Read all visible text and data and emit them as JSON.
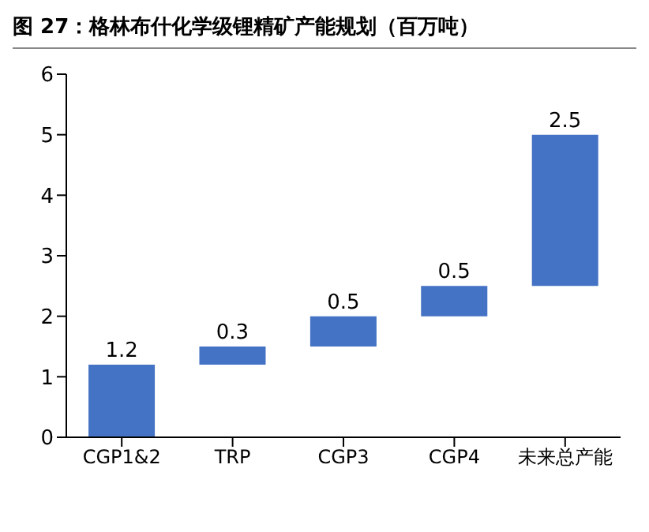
{
  "chart_data": {
    "type": "bar",
    "title": "图 27：格林布什化学级锂精矿产能规划（百万吨）",
    "categories": [
      "CGP1&2",
      "TRP",
      "CGP3",
      "CGP4",
      "未来总产能"
    ],
    "values": [
      1.2,
      0.3,
      0.5,
      0.5,
      2.5
    ],
    "base": [
      0,
      1.2,
      1.5,
      2.0,
      2.5
    ],
    "color": "#4472c4",
    "ylim": [
      0,
      6
    ],
    "yticks": [
      0,
      1,
      2,
      3,
      4,
      5,
      6
    ],
    "grid": false,
    "data_labels": true
  }
}
